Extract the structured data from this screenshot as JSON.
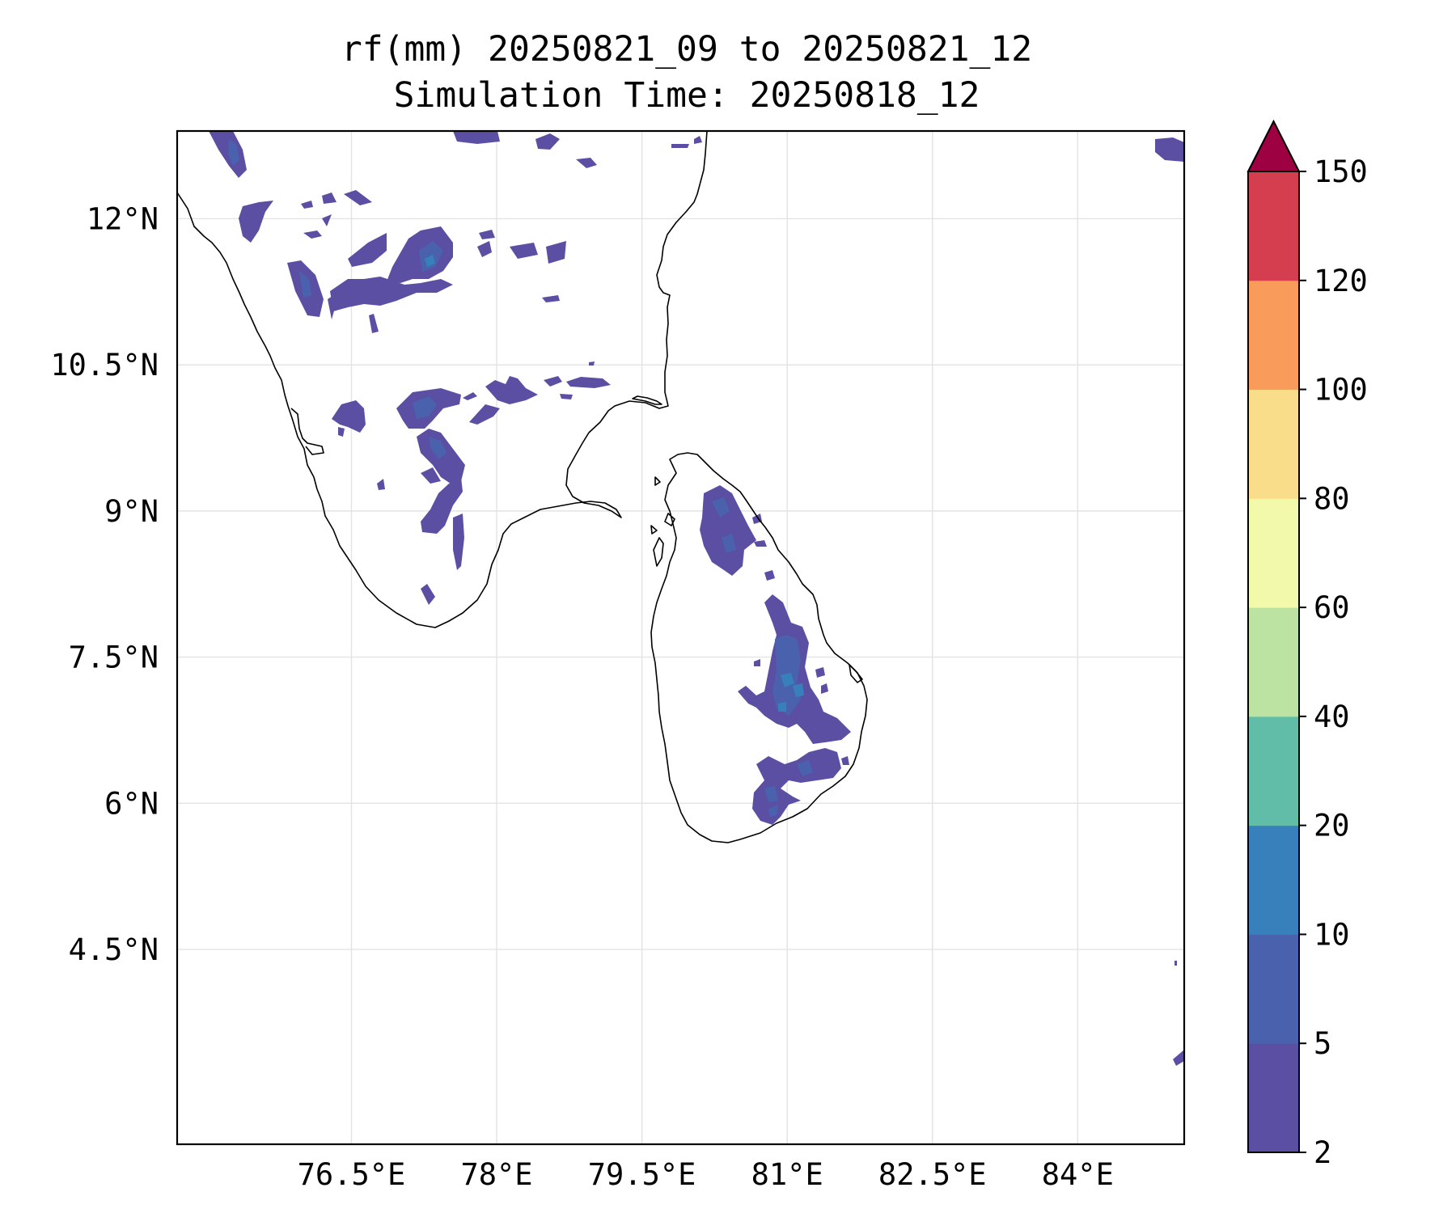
{
  "title": {
    "line1": "rf(mm) 20250821_09 to 20250821_12",
    "line2": "Simulation Time: 20250818_12"
  },
  "map": {
    "projection": "PlateCarree",
    "lon_range": [
      74.7,
      85.1
    ],
    "lat_range": [
      2.5,
      12.9
    ],
    "lon_ticks": [
      {
        "value": 76.5,
        "label": "76.5°E"
      },
      {
        "value": 78,
        "label": "78°E"
      },
      {
        "value": 79.5,
        "label": "79.5°E"
      },
      {
        "value": 81,
        "label": "81°E"
      },
      {
        "value": 82.5,
        "label": "82.5°E"
      },
      {
        "value": 84,
        "label": "84°E"
      }
    ],
    "lat_ticks": [
      {
        "value": 12,
        "label": "12°N"
      },
      {
        "value": 10.5,
        "label": "10.5°N"
      },
      {
        "value": 9,
        "label": "9°N"
      },
      {
        "value": 7.5,
        "label": "7.5°N"
      },
      {
        "value": 6,
        "label": "6°N"
      },
      {
        "value": 4.5,
        "label": "4.5°N"
      }
    ],
    "gridlines": true,
    "coastline_color": "#000000"
  },
  "colorbar": {
    "levels": [
      2,
      5,
      10,
      20,
      40,
      60,
      80,
      100,
      120,
      150
    ],
    "labels": [
      "2",
      "5",
      "10",
      "20",
      "40",
      "60",
      "80",
      "100",
      "120",
      "150"
    ],
    "colors": [
      "#5a4fa3",
      "#4a62ad",
      "#3880bb",
      "#61bda8",
      "#bde3a2",
      "#f2f9ab",
      "#fadd8a",
      "#f99c5b",
      "#d53e4f"
    ],
    "extend_color": "#9e0142",
    "extend": "max"
  },
  "rain_field": {
    "palette_note_colors": [
      "#5a4fa3",
      "#4a62ad",
      "#3880bb"
    ]
  }
}
